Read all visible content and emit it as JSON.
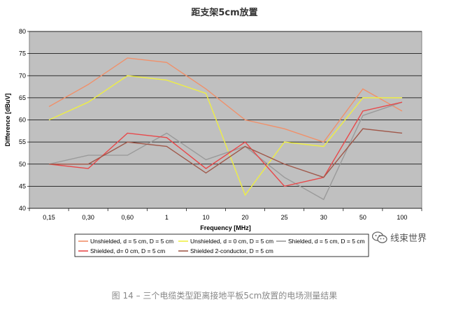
{
  "chart_data": {
    "type": "line",
    "title": "距支架5cm放置",
    "xlabel": "Frequency [MHz]",
    "ylabel": "Difference [dBuV]",
    "categories": [
      "0,15",
      "0,30",
      "0,60",
      "1",
      "10",
      "20",
      "25",
      "30",
      "50",
      "100"
    ],
    "ylim": [
      40,
      80
    ],
    "yticks": [
      40,
      45,
      50,
      55,
      60,
      65,
      70,
      75,
      80
    ],
    "grid": true,
    "legend_position": "bottom",
    "series": [
      {
        "name": "Unshielded, d = 5 cm,  D = 5 cm",
        "color": "#f0906a",
        "values": [
          63,
          68,
          74,
          73,
          67,
          60,
          58,
          55,
          67,
          62
        ]
      },
      {
        "name": "Unshielded, d = 0 cm,  D = 5 cm",
        "color": "#eeee44",
        "values": [
          60,
          64,
          70,
          69,
          66,
          43,
          55,
          54,
          65,
          65
        ]
      },
      {
        "name": "Shielded, d = 5 cm, D = 5 cm",
        "color": "#9a9a9a",
        "values": [
          50,
          52,
          52,
          57,
          51,
          54,
          47,
          42,
          61,
          64
        ]
      },
      {
        "name": "Shielded, d= 0 cm,  D = 5 cm",
        "color": "#e8484a",
        "values": [
          50,
          49,
          57,
          56,
          49,
          55,
          45,
          47,
          62,
          64
        ]
      },
      {
        "name": "Shielded 2-conductor, D = 5 cm",
        "color": "#a0584a",
        "values": [
          50,
          50,
          55,
          54,
          48,
          54,
          50,
          47,
          58,
          57
        ]
      }
    ]
  },
  "caption": "图 14 – 三个电缆类型距离接地平板5cm放置的电场测量结果",
  "watermark": {
    "text": "线束世界",
    "icon": "wechat-icon"
  }
}
